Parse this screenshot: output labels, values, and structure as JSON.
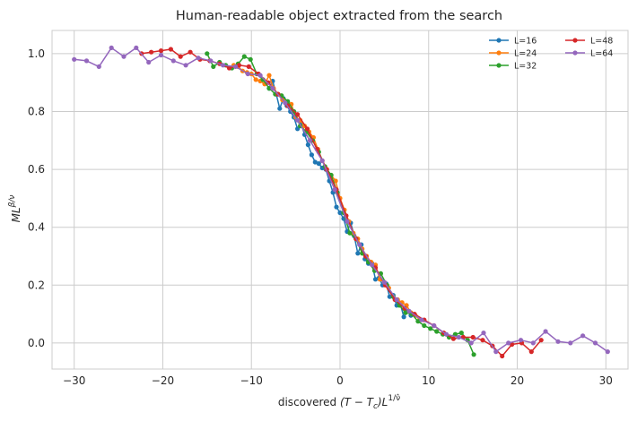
{
  "chart_data": {
    "type": "line",
    "title": "Human-readable object extracted from the search",
    "xlabel": {
      "prefix": "discovered ",
      "math": "(T − T",
      "sub": "c",
      "close": ")L",
      "sup": "1/ν̂"
    },
    "ylabel": {
      "base": "ML",
      "sup": "β/ν"
    },
    "xlim": [
      -32.5,
      32.5
    ],
    "ylim": [
      -0.09,
      1.08
    ],
    "xticks": [
      -30,
      -20,
      -10,
      0,
      10,
      20,
      30
    ],
    "xtick_labels": [
      "−30",
      "−20",
      "−10",
      "0",
      "10",
      "20",
      "30"
    ],
    "yticks": [
      0.0,
      0.2,
      0.4,
      0.6,
      0.8,
      1.0
    ],
    "ytick_labels": [
      "0.0",
      "0.2",
      "0.4",
      "0.6",
      "0.8",
      "1.0"
    ],
    "grid": true,
    "legend_position": "top-right",
    "series": [
      {
        "name": "L=16",
        "color": "#1f77b4",
        "x": [
          -8,
          -7.6,
          -7.2,
          -6.8,
          -6.4,
          -6,
          -5.6,
          -5.2,
          -4.8,
          -4.4,
          -4,
          -3.6,
          -3.2,
          -2.8,
          -2.4,
          -2,
          -1.6,
          -1.2,
          -0.8,
          -0.4,
          0,
          0.4,
          0.8,
          1.2,
          1.6,
          2,
          2.4,
          2.8,
          3.2,
          3.6,
          4,
          4.4,
          4.8,
          5.2,
          5.6,
          6,
          6.4,
          6.8,
          7.2,
          7.6,
          8
        ],
        "y": [
          0.88,
          0.905,
          0.86,
          0.81,
          0.845,
          0.82,
          0.8,
          0.78,
          0.74,
          0.76,
          0.72,
          0.685,
          0.65,
          0.625,
          0.62,
          0.605,
          0.6,
          0.56,
          0.52,
          0.47,
          0.45,
          0.43,
          0.385,
          0.415,
          0.37,
          0.31,
          0.34,
          0.29,
          0.275,
          0.275,
          0.22,
          0.225,
          0.2,
          0.205,
          0.16,
          0.165,
          0.13,
          0.135,
          0.09,
          0.11,
          0.095
        ]
      },
      {
        "name": "L=24",
        "color": "#ff7f0e",
        "x": [
          -12,
          -11.5,
          -11,
          -10.5,
          -10,
          -9.5,
          -9,
          -8.5,
          -8,
          -7.5,
          -7,
          -6.5,
          -6,
          -5.5,
          -5,
          -4.5,
          -4,
          -3.5,
          -3,
          -2.5,
          -2,
          -1.5,
          -1,
          -0.5,
          0,
          0.5,
          1,
          1.5,
          2,
          2.5,
          3,
          3.5,
          4,
          4.5,
          5,
          5.5,
          6,
          6.5,
          7,
          7.5,
          8,
          8.5,
          9
        ],
        "y": [
          0.96,
          0.955,
          0.94,
          0.935,
          0.93,
          0.91,
          0.905,
          0.895,
          0.925,
          0.88,
          0.86,
          0.84,
          0.83,
          0.825,
          0.78,
          0.77,
          0.75,
          0.73,
          0.71,
          0.67,
          0.63,
          0.6,
          0.58,
          0.56,
          0.5,
          0.46,
          0.42,
          0.38,
          0.36,
          0.325,
          0.3,
          0.28,
          0.27,
          0.22,
          0.21,
          0.19,
          0.16,
          0.15,
          0.14,
          0.13,
          0.105,
          0.095,
          0.08
        ]
      },
      {
        "name": "L=32",
        "color": "#2ca02c",
        "x": [
          -15,
          -14.3,
          -13.6,
          -12.9,
          -12.2,
          -11.5,
          -10.8,
          -10.1,
          -9.4,
          -8.7,
          -8,
          -7.3,
          -6.6,
          -5.9,
          -5.2,
          -4.5,
          -3.8,
          -3.1,
          -2.4,
          -1.7,
          -1,
          -0.3,
          0.4,
          1.1,
          1.8,
          2.5,
          3.2,
          3.9,
          4.6,
          5.3,
          6,
          6.7,
          7.4,
          8.1,
          8.8,
          9.5,
          10.2,
          10.9,
          11.6,
          12.3,
          13,
          13.7,
          14.4,
          15.1
        ],
        "y": [
          1.0,
          0.955,
          0.97,
          0.96,
          0.95,
          0.965,
          0.99,
          0.98,
          0.93,
          0.91,
          0.88,
          0.86,
          0.855,
          0.835,
          0.8,
          0.75,
          0.73,
          0.7,
          0.66,
          0.61,
          0.58,
          0.52,
          0.45,
          0.38,
          0.36,
          0.31,
          0.28,
          0.25,
          0.24,
          0.2,
          0.16,
          0.13,
          0.105,
          0.1,
          0.075,
          0.06,
          0.05,
          0.04,
          0.03,
          0.02,
          0.03,
          0.035,
          0.01,
          -0.04
        ]
      },
      {
        "name": "L=48",
        "color": "#d62728",
        "x": [
          -22.4,
          -21.3,
          -20.2,
          -19.1,
          -18,
          -16.9,
          -15.8,
          -14.7,
          -13.6,
          -12.5,
          -11.4,
          -10.3,
          -9.2,
          -8.1,
          -7,
          -5.9,
          -4.8,
          -3.7,
          -2.6,
          -1.5,
          -0.4,
          0.7,
          1.8,
          2.9,
          4,
          5.1,
          6.2,
          7.3,
          8.4,
          9.5,
          10.6,
          11.7,
          12.8,
          13.9,
          15,
          16.1,
          17.2,
          18.3,
          19.4,
          20.5,
          21.6,
          22.7
        ],
        "y": [
          1.0,
          1.005,
          1.01,
          1.015,
          0.99,
          1.005,
          0.98,
          0.975,
          0.965,
          0.95,
          0.96,
          0.955,
          0.93,
          0.9,
          0.86,
          0.82,
          0.79,
          0.74,
          0.67,
          0.6,
          0.53,
          0.44,
          0.36,
          0.3,
          0.26,
          0.2,
          0.15,
          0.12,
          0.1,
          0.08,
          0.06,
          0.035,
          0.015,
          0.02,
          0.02,
          0.01,
          -0.01,
          -0.045,
          -0.005,
          0.0,
          -0.03,
          0.01
        ]
      },
      {
        "name": "L=64",
        "color": "#9467bd",
        "x": [
          -30,
          -28.6,
          -27.2,
          -25.8,
          -24.4,
          -23,
          -21.6,
          -20.2,
          -18.8,
          -17.4,
          -16,
          -14.6,
          -13.2,
          -11.8,
          -10.4,
          -9,
          -7.6,
          -6.2,
          -4.8,
          -3.4,
          -2,
          -0.6,
          0.8,
          2.2,
          3.6,
          5,
          6.4,
          7.8,
          9.2,
          10.6,
          12,
          13.4,
          14.8,
          16.2,
          17.6,
          19,
          20.4,
          21.8,
          23.2,
          24.6,
          26,
          27.4,
          28.8,
          30.2
        ],
        "y": [
          0.98,
          0.975,
          0.955,
          1.02,
          0.99,
          1.02,
          0.97,
          0.995,
          0.975,
          0.96,
          0.985,
          0.975,
          0.96,
          0.955,
          0.93,
          0.925,
          0.88,
          0.83,
          0.77,
          0.7,
          0.63,
          0.53,
          0.42,
          0.34,
          0.27,
          0.21,
          0.15,
          0.11,
          0.08,
          0.06,
          0.03,
          0.02,
          0.0,
          0.035,
          -0.03,
          0.0,
          0.01,
          0.0,
          0.04,
          0.005,
          0.0,
          0.025,
          0.0,
          -0.03
        ]
      }
    ]
  }
}
